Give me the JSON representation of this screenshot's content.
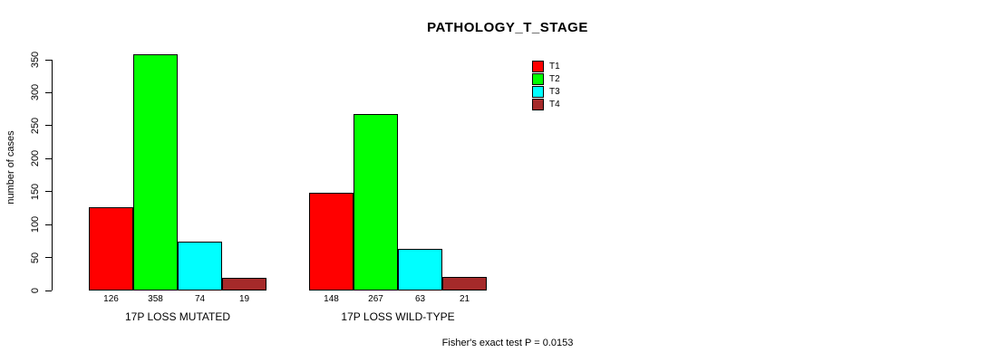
{
  "chart_data": {
    "type": "bar",
    "title": "PATHOLOGY_T_STAGE",
    "xlabel": "",
    "ylabel": "number of cases",
    "ylim": [
      0,
      350
    ],
    "yticks": [
      0,
      50,
      100,
      150,
      200,
      250,
      300,
      350
    ],
    "grid": false,
    "legend_position": "top-right",
    "categories": [
      "17P LOSS MUTATED",
      "17P LOSS WILD-TYPE"
    ],
    "series": [
      {
        "name": "T1",
        "color": "#FF0000",
        "values": [
          126,
          148
        ]
      },
      {
        "name": "T2",
        "color": "#00FF00",
        "values": [
          358,
          267
        ]
      },
      {
        "name": "T3",
        "color": "#00FFFF",
        "values": [
          74,
          63
        ]
      },
      {
        "name": "T4",
        "color": "#A52A2A",
        "values": [
          19,
          21
        ]
      }
    ],
    "annotation": "Fisher's exact test P = 0.0153"
  }
}
